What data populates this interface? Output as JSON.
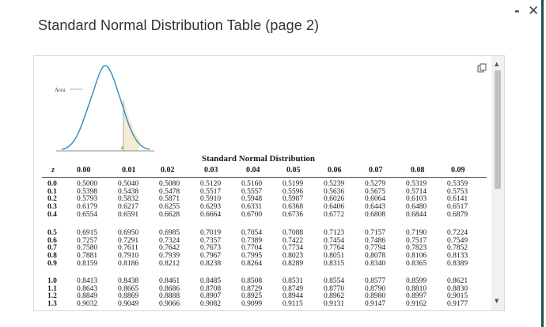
{
  "window": {
    "title": "Standard Normal Distribution Table (page 2)",
    "minimize_label": "-",
    "close_label": "✕"
  },
  "figure": {
    "area_label": "Area",
    "z_label": "z"
  },
  "table": {
    "title": "Standard Normal Distribution",
    "headers": [
      "z",
      "0.00",
      "0.01",
      "0.02",
      "0.03",
      "0.04",
      "0.05",
      "0.06",
      "0.07",
      "0.08",
      "0.09"
    ],
    "groups": [
      {
        "z": "0.0\n0.1\n0.2\n0.3\n0.4",
        "cols": [
          "0.5000\n0.5398\n0.5793\n0.6179\n0.6554",
          "0.5040\n0.5438\n0.5832\n0.6217\n0.6591",
          "0.5080\n0.5478\n0.5871\n0.6255\n0.6628",
          "0.5120\n0.5517\n0.5910\n0.6293\n0.6664",
          "0.5160\n0.5557\n0.5948\n0.6331\n0.6700",
          "0.5199\n0.5596\n0.5987\n0.6368\n0.6736",
          "0.5239\n0.5636\n0.6026\n0.6406\n0.6772",
          "0.5279\n0.5675\n0.6064\n0.6443\n0.6808",
          "0.5319\n0.5714\n0.6103\n0.6480\n0.6844",
          "0.5359\n0.5753\n0.6141\n0.6517\n0.6879"
        ]
      },
      {
        "z": "0.5\n0.6\n0.7\n0.8\n0.9",
        "cols": [
          "0.6915\n0.7257\n0.7580\n0.7881\n0.8159",
          "0.6950\n0.7291\n0.7611\n0.7910\n0.8186",
          "0.6985\n0.7324\n0.7642\n0.7939\n0.8212",
          "0.7019\n0.7357\n0.7673\n0.7967\n0.8238",
          "0.7054\n0.7389\n0.7704\n0.7995\n0.8264",
          "0.7088\n0.7422\n0.7734\n0.8023\n0.8289",
          "0.7123\n0.7454\n0.7764\n0.8051\n0.8315",
          "0.7157\n0.7486\n0.7794\n0.8078\n0.8340",
          "0.7190\n0.7517\n0.7823\n0.8106\n0.8365",
          "0.7224\n0.7549\n0.7852\n0.8133\n0.8389"
        ]
      },
      {
        "z": "1.0\n1.1\n1.2\n1.3",
        "cols": [
          "0.8413\n0.8643\n0.8849\n0.9032",
          "0.8438\n0.8665\n0.8869\n0.9049",
          "0.8461\n0.8686\n0.8888\n0.9066",
          "0.8485\n0.8708\n0.8907\n0.9082",
          "0.8508\n0.8729\n0.8925\n0.9099",
          "0.8531\n0.8749\n0.8944\n0.9115",
          "0.8554\n0.8770\n0.8962\n0.9131",
          "0.8577\n0.8790\n0.8980\n0.9147",
          "0.8599\n0.8810\n0.8997\n0.9162",
          "0.8621\n0.8830\n0.9015\n0.9177"
        ]
      }
    ]
  }
}
